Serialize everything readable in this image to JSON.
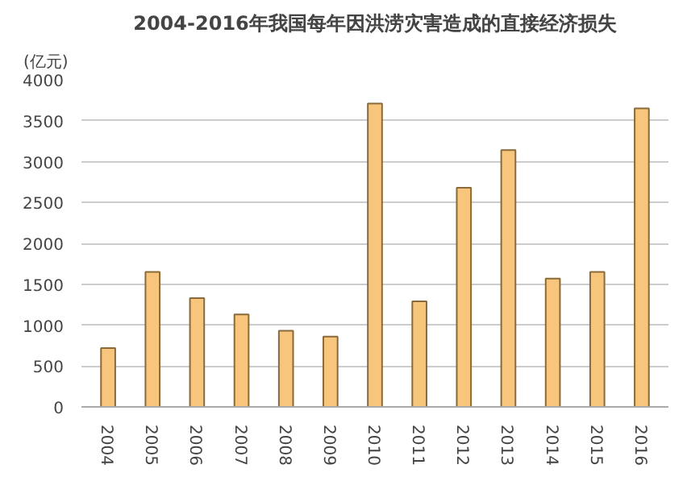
{
  "chart_data": {
    "type": "bar",
    "title": "2004-2016年我国每年因洪涝灾害造成的直接经济损失",
    "ylabel": "(亿元)",
    "categories": [
      "2004",
      "2005",
      "2006",
      "2007",
      "2008",
      "2009",
      "2010",
      "2011",
      "2012",
      "2013",
      "2014",
      "2015",
      "2016"
    ],
    "values": [
      720,
      1650,
      1330,
      1130,
      930,
      860,
      3710,
      1290,
      2680,
      3140,
      1570,
      1650,
      3650
    ],
    "color": "#f7c67c",
    "ylim": [
      0,
      4000
    ],
    "yticks": [
      0,
      500,
      1000,
      1500,
      2000,
      2500,
      3000,
      3500,
      4000
    ],
    "grid": "y"
  }
}
